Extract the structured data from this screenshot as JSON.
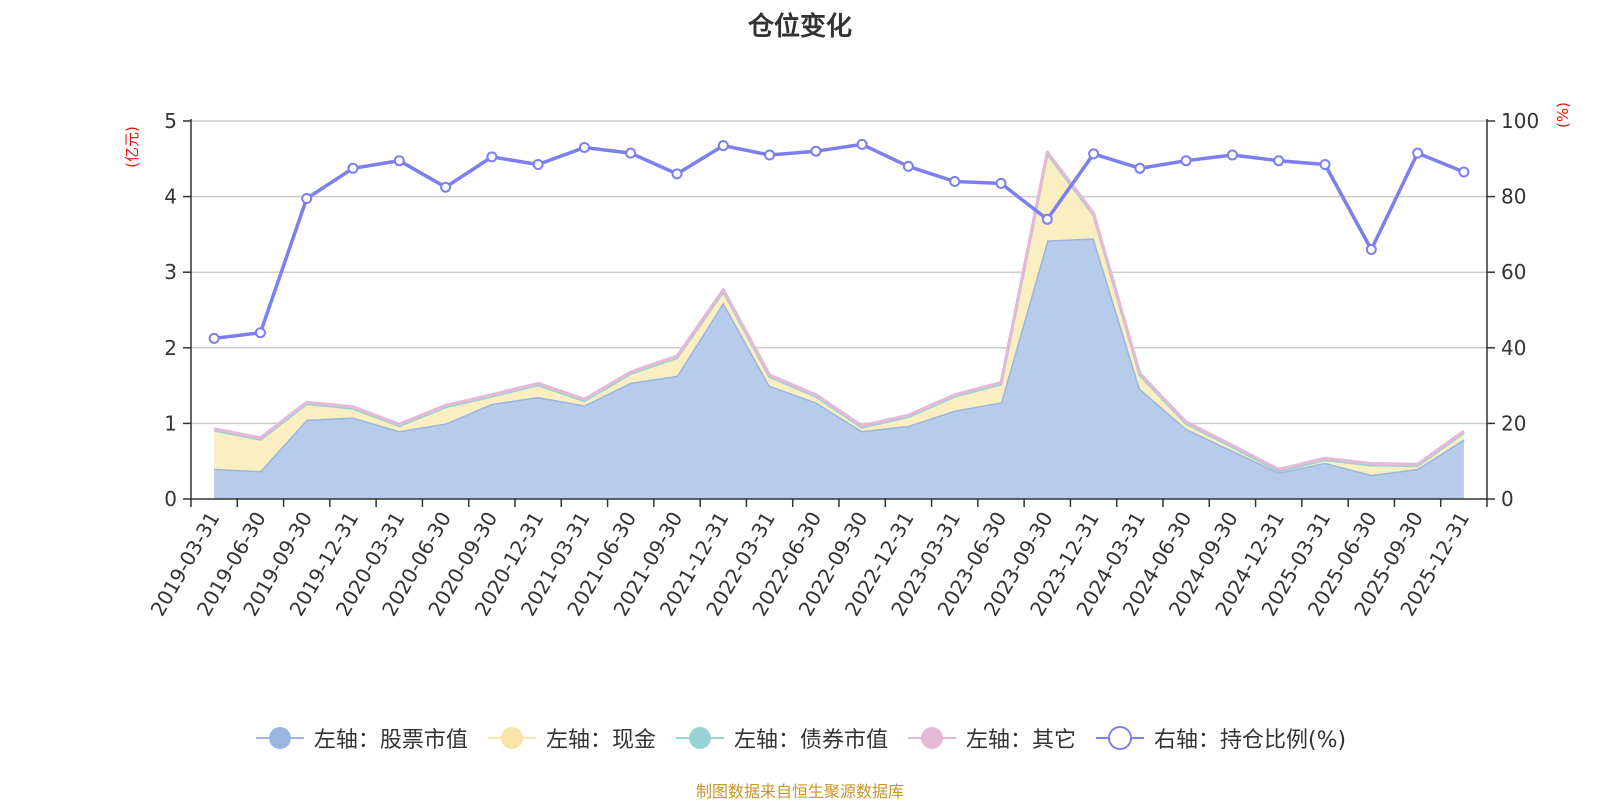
{
  "chart_data": {
    "type": "area",
    "title": "仓位变化",
    "left_axis": {
      "unit_label": "(亿元)",
      "ylim": [
        0,
        5
      ],
      "ticks": [
        "0",
        "1",
        "2",
        "3",
        "4",
        "5"
      ]
    },
    "right_axis": {
      "unit_label": "(%)",
      "ylim": [
        0,
        100
      ],
      "ticks": [
        "0",
        "20",
        "40",
        "60",
        "80",
        "100"
      ]
    },
    "categories": [
      "2019-03-31",
      "2019-06-30",
      "2019-09-30",
      "2019-12-31",
      "2020-03-31",
      "2020-06-30",
      "2020-09-30",
      "2020-12-31",
      "2021-03-31",
      "2021-06-30",
      "2021-09-30",
      "2021-12-31",
      "2022-03-31",
      "2022-06-30",
      "2022-09-30",
      "2022-12-31",
      "2023-03-31",
      "2023-06-30",
      "2023-09-30",
      "2023-12-31",
      "2024-03-31",
      "2024-06-30",
      "2024-09-30",
      "2024-12-31",
      "2025-03-31",
      "2025-06-30",
      "2025-09-30",
      "2025-12-31"
    ],
    "series": [
      {
        "name": "左轴：股票市值",
        "type": "area",
        "axis": "left",
        "color": "#9ab6e0",
        "fill": "#b7cbea",
        "values": [
          0.4,
          0.37,
          1.05,
          1.08,
          0.9,
          1.0,
          1.26,
          1.35,
          1.24,
          1.54,
          1.63,
          2.6,
          1.5,
          1.28,
          0.9,
          0.97,
          1.17,
          1.28,
          3.42,
          3.45,
          1.46,
          0.93,
          0.64,
          0.35,
          0.48,
          0.32,
          0.4,
          0.79
        ]
      },
      {
        "name": "左轴：现金",
        "type": "area",
        "axis": "left",
        "color": "#f8e4a6",
        "fill": "#fbeec1",
        "values": [
          0.51,
          0.42,
          0.21,
          0.12,
          0.07,
          0.22,
          0.1,
          0.16,
          0.06,
          0.12,
          0.24,
          0.15,
          0.12,
          0.08,
          0.05,
          0.12,
          0.19,
          0.24,
          1.15,
          0.31,
          0.18,
          0.07,
          0.05,
          0.02,
          0.04,
          0.13,
          0.04,
          0.09
        ]
      },
      {
        "name": "左轴：债券市值",
        "type": "area",
        "axis": "left",
        "color": "#98d2d3",
        "fill": "#b3dfe0",
        "values": [
          0,
          0,
          0,
          0,
          0,
          0,
          0,
          0,
          0,
          0,
          0,
          0,
          0,
          0,
          0,
          0,
          0,
          0,
          0,
          0,
          0,
          0,
          0,
          0,
          0,
          0,
          0,
          0
        ]
      },
      {
        "name": "左轴：其它",
        "type": "area",
        "axis": "left",
        "color": "#e6b8d8",
        "fill": "#efcfe5",
        "values": [
          0.02,
          0.02,
          0.02,
          0.02,
          0.02,
          0.02,
          0.02,
          0.02,
          0.02,
          0.02,
          0.02,
          0.02,
          0.02,
          0.02,
          0.02,
          0.02,
          0.02,
          0.02,
          0.02,
          0.02,
          0.02,
          0.02,
          0.02,
          0.02,
          0.02,
          0.02,
          0.02,
          0.02
        ]
      },
      {
        "name": "右轴：持仓比例(%)",
        "type": "line",
        "axis": "right",
        "color": "#7b7ff0",
        "values": [
          42.5,
          44.0,
          79.5,
          87.5,
          89.5,
          82.5,
          90.5,
          88.5,
          93.0,
          91.5,
          86.0,
          93.5,
          91.0,
          92.0,
          93.8,
          88.0,
          84.0,
          83.5,
          74.0,
          91.3,
          87.5,
          89.5,
          91.0,
          89.5,
          88.5,
          66.0,
          91.5,
          86.5
        ]
      }
    ],
    "grid": true,
    "legend_position": "bottom-center"
  },
  "footer": {
    "source": "制图数据来自恒生聚源数据库"
  }
}
